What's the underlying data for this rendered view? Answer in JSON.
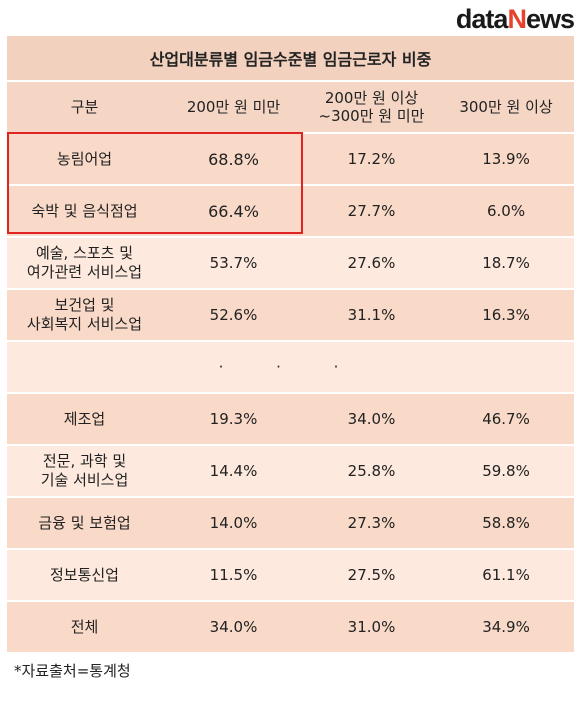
{
  "logo": {
    "part1": "data",
    "part2": "N",
    "part3": "ews"
  },
  "title": "산업대분류별 임금수준별 임금근로자 비중",
  "header": {
    "c1": "구분",
    "c2": "200만 원 미만",
    "c3_line1": "200만 원 이상",
    "c3_line2": "~300만 원 미만",
    "c4": "300만 원 이상"
  },
  "rows": [
    {
      "l1": "농림어업",
      "l2": "",
      "v1": "68.8%",
      "v2": "17.2%",
      "v3": "13.9%"
    },
    {
      "l1": "숙박 및 음식점업",
      "l2": "",
      "v1": "66.4%",
      "v2": "27.7%",
      "v3": "6.0%"
    },
    {
      "l1": "예술, 스포츠 및",
      "l2": "여가관련 서비스업",
      "v1": "53.7%",
      "v2": "27.6%",
      "v3": "18.7%"
    },
    {
      "l1": "보건업 및",
      "l2": "사회복지 서비스업",
      "v1": "52.6%",
      "v2": "31.1%",
      "v3": "16.3%"
    },
    {
      "l1": "제조업",
      "l2": "",
      "v1": "19.3%",
      "v2": "34.0%",
      "v3": "46.7%"
    },
    {
      "l1": "전문, 과학 및",
      "l2": "기술 서비스업",
      "v1": "14.4%",
      "v2": "25.8%",
      "v3": "59.8%"
    },
    {
      "l1": "금융 및 보험업",
      "l2": "",
      "v1": "14.0%",
      "v2": "27.3%",
      "v3": "58.8%"
    },
    {
      "l1": "정보통신업",
      "l2": "",
      "v1": "11.5%",
      "v2": "27.5%",
      "v3": "61.1%"
    },
    {
      "l1": "전체",
      "l2": "",
      "v1": "34.0%",
      "v2": "31.0%",
      "v3": "34.9%"
    }
  ],
  "ellipsis": "· · ·",
  "source": "*자료출처=통계청"
}
